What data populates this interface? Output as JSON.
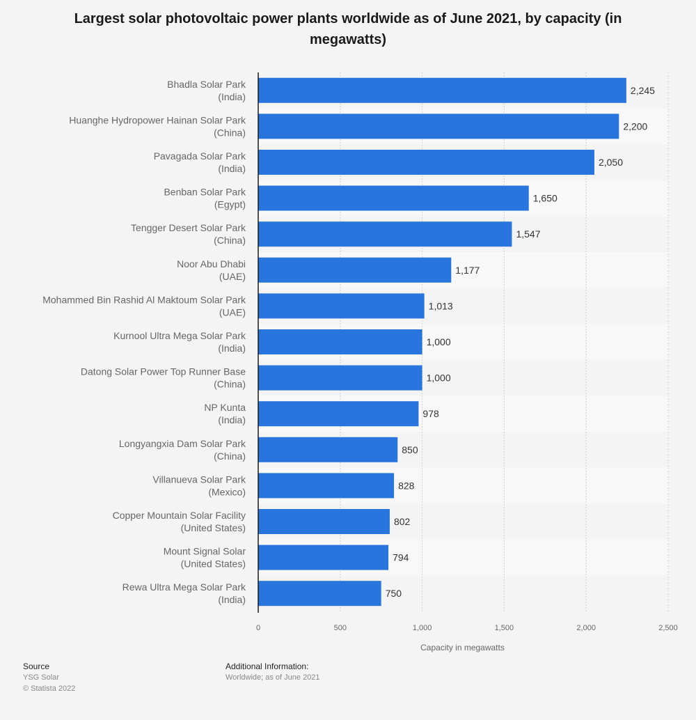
{
  "chart_data": {
    "type": "bar",
    "orientation": "horizontal",
    "title": "Largest solar photovoltaic power plants worldwide as of June 2021, by capacity (in megawatts)",
    "xlabel": "Capacity in megawatts",
    "ylabel": "",
    "xlim": [
      0,
      2500
    ],
    "xticks": [
      0,
      500,
      1000,
      1500,
      2000,
      2500
    ],
    "xtick_labels": [
      "0",
      "500",
      "1,000",
      "1,500",
      "2,000",
      "2,500"
    ],
    "grid": true,
    "bar_color": "#2876dd",
    "categories": [
      [
        "Bhadla Solar Park",
        "(India)"
      ],
      [
        "Huanghe Hydropower Hainan Solar Park",
        "(China)"
      ],
      [
        "Pavagada Solar Park",
        "(India)"
      ],
      [
        "Benban Solar Park",
        "(Egypt)"
      ],
      [
        "Tengger Desert Solar Park",
        "(China)"
      ],
      [
        "Noor Abu Dhabi",
        "(UAE)"
      ],
      [
        "Mohammed Bin Rashid Al Maktoum Solar Park",
        "(UAE)"
      ],
      [
        "Kurnool Ultra Mega Solar Park",
        "(India)"
      ],
      [
        "Datong Solar Power Top Runner Base",
        "(China)"
      ],
      [
        "NP Kunta",
        "(India)"
      ],
      [
        "Longyangxia Dam Solar Park",
        "(China)"
      ],
      [
        "Villanueva Solar Park",
        "(Mexico)"
      ],
      [
        "Copper Mountain Solar Facility",
        "(United States)"
      ],
      [
        "Mount Signal Solar",
        "(United States)"
      ],
      [
        "Rewa Ultra Mega Solar Park",
        "(India)"
      ]
    ],
    "values": [
      2245,
      2200,
      2050,
      1650,
      1547,
      1177,
      1013,
      1000,
      1000,
      978,
      850,
      828,
      802,
      794,
      750
    ],
    "value_labels": [
      "2,245",
      "2,200",
      "2,050",
      "1,650",
      "1,547",
      "1,177",
      "1,013",
      "1,000",
      "1,000",
      "978",
      "850",
      "828",
      "802",
      "794",
      "750"
    ]
  },
  "footer": {
    "source_heading": "Source",
    "source_name": "YSG Solar",
    "copyright": "© Statista 2022",
    "additional_heading": "Additional Information:",
    "additional_text": "Worldwide; as of June 2021"
  }
}
